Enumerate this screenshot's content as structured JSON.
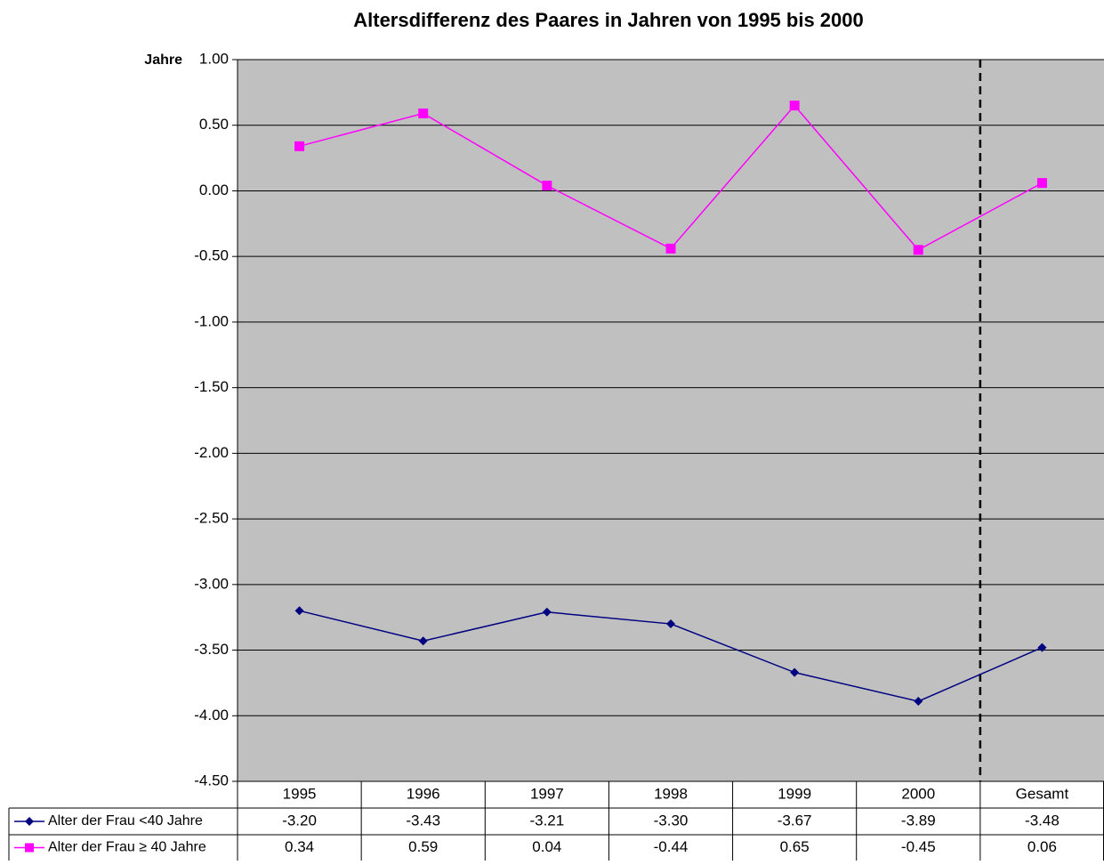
{
  "chart_data": {
    "type": "line",
    "title": "Altersdifferenz des Paares in Jahren von 1995 bis 2000",
    "y_label": "Jahre",
    "categories": [
      "1995",
      "1996",
      "1997",
      "1998",
      "1999",
      "2000",
      "Gesamt"
    ],
    "series": [
      {
        "name": "Alter der Frau <40 Jahre",
        "color": "#000080",
        "marker": "diamond",
        "values": [
          -3.2,
          -3.43,
          -3.21,
          -3.3,
          -3.67,
          -3.89,
          -3.48
        ],
        "value_labels": [
          "-3.20",
          "-3.43",
          "-3.21",
          "-3.30",
          "-3.67",
          "-3.89",
          "-3.48"
        ]
      },
      {
        "name": "Alter der Frau ≥ 40 Jahre",
        "color": "#ff00ff",
        "marker": "square",
        "values": [
          0.34,
          0.59,
          0.04,
          -0.44,
          0.65,
          -0.45,
          0.06
        ],
        "value_labels": [
          "0.34",
          "0.59",
          "0.04",
          "-0.44",
          "0.65",
          "-0.45",
          "0.06"
        ]
      }
    ],
    "ylim": [
      -4.5,
      1
    ],
    "yticks": [
      {
        "value": 1,
        "label": "1.00"
      },
      {
        "value": 0.5,
        "label": "0.50"
      },
      {
        "value": 0,
        "label": "0.00"
      },
      {
        "value": -0.5,
        "label": "-0.50"
      },
      {
        "value": -1,
        "label": "-1.00"
      },
      {
        "value": -1.5,
        "label": "-1.50"
      },
      {
        "value": -2,
        "label": "-2.00"
      },
      {
        "value": -2.5,
        "label": "-2.50"
      },
      {
        "value": -3,
        "label": "-3.00"
      },
      {
        "value": -3.5,
        "label": "-3.50"
      },
      {
        "value": -4,
        "label": "-4.00"
      },
      {
        "value": -4.5,
        "label": "-4.50"
      }
    ],
    "grid": true,
    "background": "#c0c0c0"
  }
}
